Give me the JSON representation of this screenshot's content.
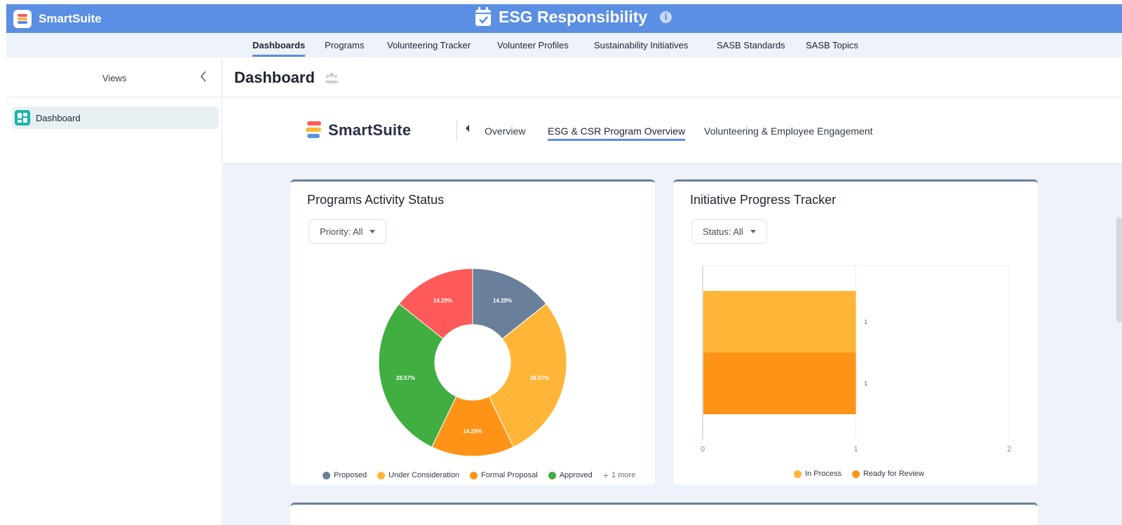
{
  "app": {
    "brand": "SmartSuite",
    "title": "ESG Responsibility",
    "info_icon": "info-icon",
    "colors": {
      "header": "#5b8fe3",
      "accent": "#5b8fe3",
      "sidebar_icon": "#17b7a8"
    }
  },
  "nav": {
    "tabs": [
      "Dashboards",
      "Programs",
      "Volunteering Tracker",
      "Volunteer Profiles",
      "Sustainability Initiatives",
      "SASB Standards",
      "SASB Topics"
    ],
    "active": "Dashboards"
  },
  "sidebar": {
    "title": "Views",
    "collapse_icon": "chevron-left-icon",
    "items": [
      {
        "label": "Dashboard",
        "icon": "dashboard-icon"
      }
    ]
  },
  "main": {
    "title": "Dashboard",
    "share_icon": "people-icon"
  },
  "dashboard_nav": {
    "logo_text": "SmartSuite",
    "tabs": [
      "Overview",
      "ESG & CSR Program Overview",
      "Volunteering & Employee Engagement"
    ],
    "active": "ESG & CSR Program Overview"
  },
  "cards": {
    "programs": {
      "title": "Programs Activity Status",
      "filter_label": "Priority: All",
      "more_label": "1 more"
    },
    "initiatives": {
      "title": "Initiative Progress Tracker",
      "filter_label": "Status: All"
    }
  },
  "chart_data": [
    {
      "type": "pie",
      "donut": true,
      "title": "Programs Activity Status",
      "slices": [
        {
          "label": "Proposed",
          "value": 14.29,
          "display": "14.29%",
          "color": "#6a7f99"
        },
        {
          "label": "Under Consideration",
          "value": 28.57,
          "display": "28.57%",
          "color": "#ffb638"
        },
        {
          "label": "Formal Proposal",
          "value": 14.29,
          "display": "14.29%",
          "color": "#ff9317"
        },
        {
          "label": "Approved",
          "value": 28.57,
          "display": "28.57%",
          "color": "#41ae41"
        },
        {
          "label": "",
          "value": 14.29,
          "display": "14.29%",
          "color": "#ff5a5a"
        }
      ],
      "legend": [
        "Proposed",
        "Under Consideration",
        "Formal Proposal",
        "Approved"
      ]
    },
    {
      "type": "bar",
      "orientation": "horizontal",
      "stacked": true,
      "title": "Initiative Progress Tracker",
      "categories": [
        "In Process",
        "Ready for Review"
      ],
      "values": [
        1,
        1
      ],
      "colors": [
        "#ffb638",
        "#ff9317"
      ],
      "x_ticks": [
        "0",
        "1",
        "2"
      ],
      "xlim": [
        0,
        2
      ],
      "legend": [
        "In Process",
        "Ready for Review"
      ]
    }
  ]
}
